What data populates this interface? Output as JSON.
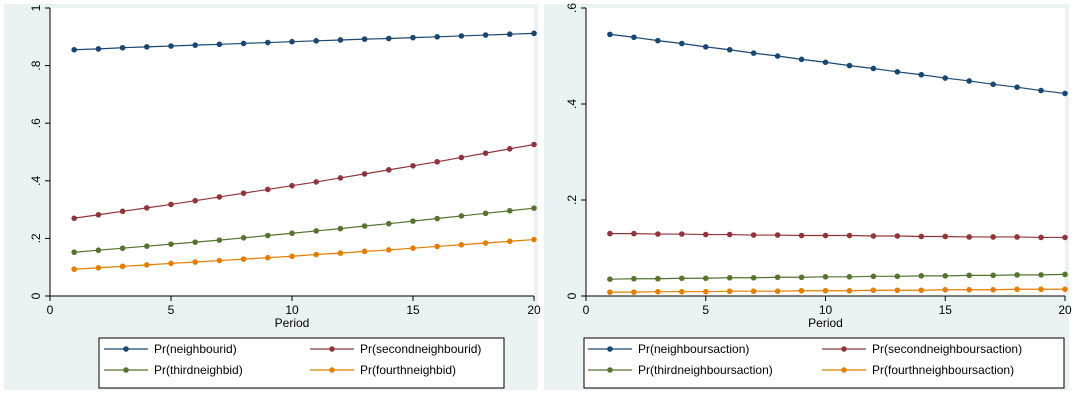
{
  "chart_data": [
    {
      "type": "line",
      "title": "",
      "xlabel": "Period",
      "ylabel": "",
      "x": [
        1,
        2,
        3,
        4,
        5,
        6,
        7,
        8,
        9,
        10,
        11,
        12,
        13,
        14,
        15,
        16,
        17,
        18,
        19,
        20
      ],
      "xlim": [
        0,
        20
      ],
      "ylim": [
        0,
        1
      ],
      "xticks": [
        0,
        5,
        10,
        15,
        20
      ],
      "xtick_labels": [
        "0",
        "5",
        "10",
        "15",
        "20"
      ],
      "yticks": [
        0,
        0.2,
        0.4,
        0.6,
        0.8,
        1
      ],
      "ytick_labels": [
        "0",
        ".2",
        ".4",
        ".6",
        ".8",
        "1"
      ],
      "grid": false,
      "legend_position": "bottom",
      "series": [
        {
          "name": "Pr(neighbourid)",
          "color": "#1a476f",
          "values": [
            0.855,
            0.858,
            0.862,
            0.865,
            0.868,
            0.871,
            0.874,
            0.877,
            0.88,
            0.883,
            0.886,
            0.889,
            0.892,
            0.894,
            0.897,
            0.9,
            0.903,
            0.906,
            0.909,
            0.912
          ]
        },
        {
          "name": "Pr(secondneighbourid)",
          "color": "#90353b",
          "values": [
            0.27,
            0.282,
            0.294,
            0.306,
            0.318,
            0.331,
            0.344,
            0.357,
            0.37,
            0.383,
            0.396,
            0.41,
            0.424,
            0.438,
            0.452,
            0.466,
            0.481,
            0.496,
            0.511,
            0.526
          ]
        },
        {
          "name": "Pr(thirdneighbid)",
          "color": "#55752f",
          "values": [
            0.152,
            0.159,
            0.166,
            0.173,
            0.18,
            0.187,
            0.194,
            0.202,
            0.21,
            0.218,
            0.226,
            0.234,
            0.243,
            0.251,
            0.26,
            0.269,
            0.278,
            0.287,
            0.296,
            0.305
          ]
        },
        {
          "name": "Pr(fourthneighbid)",
          "color": "#e37e00",
          "values": [
            0.093,
            0.098,
            0.103,
            0.108,
            0.113,
            0.118,
            0.123,
            0.128,
            0.133,
            0.138,
            0.144,
            0.149,
            0.155,
            0.16,
            0.166,
            0.172,
            0.178,
            0.184,
            0.19,
            0.196
          ]
        }
      ]
    },
    {
      "type": "line",
      "title": "",
      "xlabel": "Period",
      "ylabel": "",
      "x": [
        1,
        2,
        3,
        4,
        5,
        6,
        7,
        8,
        9,
        10,
        11,
        12,
        13,
        14,
        15,
        16,
        17,
        18,
        19,
        20
      ],
      "xlim": [
        0,
        20
      ],
      "ylim": [
        0,
        0.6
      ],
      "xticks": [
        0,
        5,
        10,
        15,
        20
      ],
      "xtick_labels": [
        "0",
        "5",
        "10",
        "15",
        "20"
      ],
      "yticks": [
        0,
        0.2,
        0.4,
        0.6
      ],
      "ytick_labels": [
        "0",
        ".2",
        ".4",
        ".6"
      ],
      "grid": false,
      "legend_position": "bottom",
      "series": [
        {
          "name": "Pr(neighboursaction)",
          "color": "#1a476f",
          "values": [
            0.545,
            0.539,
            0.532,
            0.526,
            0.519,
            0.513,
            0.506,
            0.5,
            0.493,
            0.487,
            0.48,
            0.474,
            0.467,
            0.461,
            0.454,
            0.448,
            0.441,
            0.435,
            0.428,
            0.422
          ]
        },
        {
          "name": "Pr(secondneighboursaction)",
          "color": "#90353b",
          "values": [
            0.13,
            0.13,
            0.129,
            0.129,
            0.128,
            0.128,
            0.127,
            0.127,
            0.126,
            0.126,
            0.126,
            0.125,
            0.125,
            0.124,
            0.124,
            0.123,
            0.123,
            0.123,
            0.122,
            0.122
          ]
        },
        {
          "name": "Pr(thirdneighboursaction)",
          "color": "#55752f",
          "values": [
            0.035,
            0.036,
            0.036,
            0.037,
            0.037,
            0.038,
            0.038,
            0.039,
            0.039,
            0.04,
            0.04,
            0.041,
            0.041,
            0.042,
            0.042,
            0.043,
            0.043,
            0.044,
            0.044,
            0.045
          ]
        },
        {
          "name": "Pr(fourthneighboursaction)",
          "color": "#e37e00",
          "values": [
            0.008,
            0.008,
            0.009,
            0.009,
            0.009,
            0.01,
            0.01,
            0.01,
            0.011,
            0.011,
            0.011,
            0.012,
            0.012,
            0.012,
            0.013,
            0.013,
            0.013,
            0.014,
            0.014,
            0.014
          ]
        }
      ]
    }
  ]
}
